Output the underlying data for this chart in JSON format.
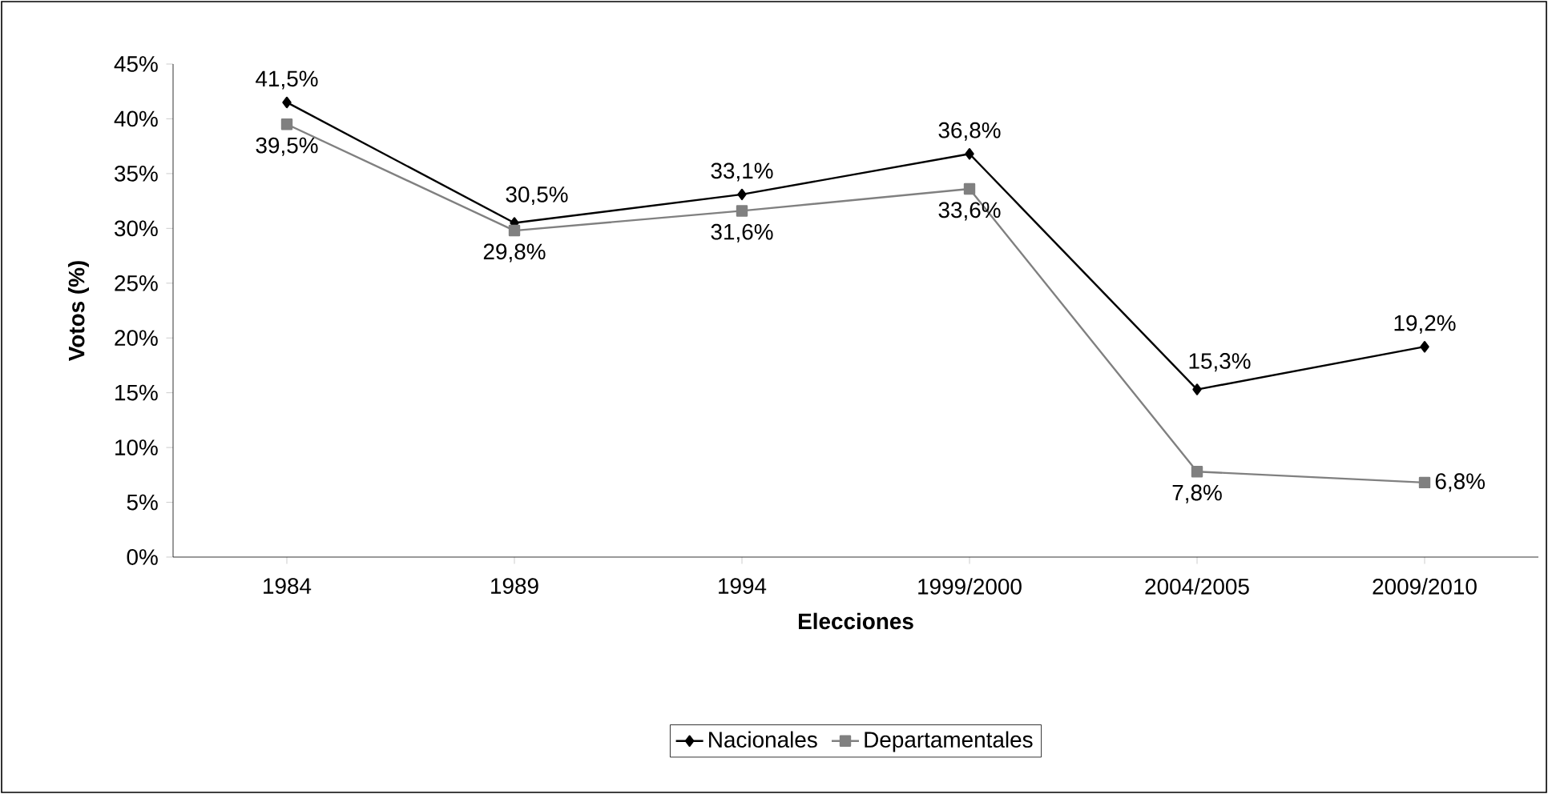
{
  "chart_data": {
    "type": "line",
    "xlabel": "Elecciones",
    "ylabel": "Votos (%)",
    "categories": [
      "1984",
      "1989",
      "1994",
      "1999/2000",
      "2004/2005",
      "2009/2010"
    ],
    "ylim": [
      0,
      45
    ],
    "yticks": [
      {
        "value": 0,
        "label": "0%"
      },
      {
        "value": 5,
        "label": "5%"
      },
      {
        "value": 10,
        "label": "10%"
      },
      {
        "value": 15,
        "label": "15%"
      },
      {
        "value": 20,
        "label": "20%"
      },
      {
        "value": 25,
        "label": "25%"
      },
      {
        "value": 30,
        "label": "30%"
      },
      {
        "value": 35,
        "label": "35%"
      },
      {
        "value": 40,
        "label": "40%"
      },
      {
        "value": 45,
        "label": "45%"
      }
    ],
    "legend": "bottom",
    "grid": false,
    "series": [
      {
        "name": "Nacionales",
        "color": "#000000",
        "marker": "diamond",
        "values": [
          41.5,
          30.5,
          33.1,
          36.8,
          15.3,
          19.2
        ],
        "value_labels": [
          "41,5%",
          "30,5%",
          "33,1%",
          "36,8%",
          "15,3%",
          "19,2%"
        ]
      },
      {
        "name": "Departamentales",
        "color": "#808080",
        "marker": "square",
        "values": [
          39.5,
          29.8,
          31.6,
          33.6,
          7.8,
          6.8
        ],
        "value_labels": [
          "39,5%",
          "29,8%",
          "31,6%",
          "33,6%",
          "7,8%",
          "6,8%"
        ]
      }
    ]
  }
}
